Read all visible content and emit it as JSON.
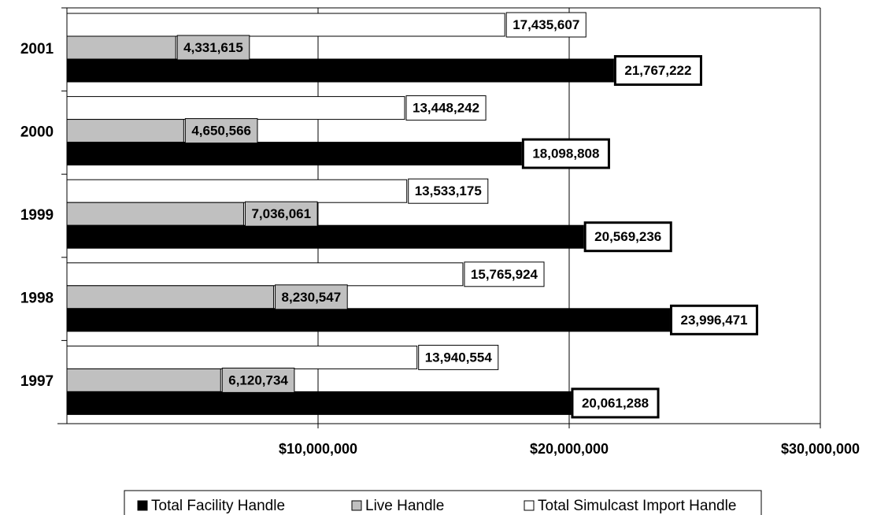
{
  "chart_data": {
    "type": "hbar",
    "categories": [
      "2001",
      "2000",
      "1999",
      "1998",
      "1997"
    ],
    "series": [
      {
        "name": "Total Facility Handle",
        "color": "#000000",
        "values": [
          21767222,
          18098808,
          20569236,
          23996471,
          20061288
        ],
        "value_labels": [
          "21,767,222",
          "18,098,808",
          "20,569,236",
          "23,996,471",
          "20,061,288"
        ]
      },
      {
        "name": "Live Handle",
        "color": "#c0c0c0",
        "values": [
          4331615,
          4650566,
          7036061,
          8230547,
          6120734
        ],
        "value_labels": [
          "4,331,615",
          "4,650,566",
          "7,036,061",
          "8,230,547",
          "6,120,734"
        ]
      },
      {
        "name": "Total Simulcast Import Handle",
        "color": "#ffffff",
        "values": [
          17435607,
          13448242,
          13533175,
          15765924,
          13940554
        ],
        "value_labels": [
          "17,435,607",
          "13,448,242",
          "13,533,175",
          "15,765,924",
          "13,940,554"
        ]
      }
    ],
    "xlim": [
      0,
      30000000
    ],
    "xticks": [
      {
        "value": 10000000,
        "label": "$10,000,000"
      },
      {
        "value": 20000000,
        "label": "$20,000,000"
      },
      {
        "value": 30000000,
        "label": "$30,000,000"
      }
    ],
    "grid": true,
    "legend": "bottom"
  }
}
